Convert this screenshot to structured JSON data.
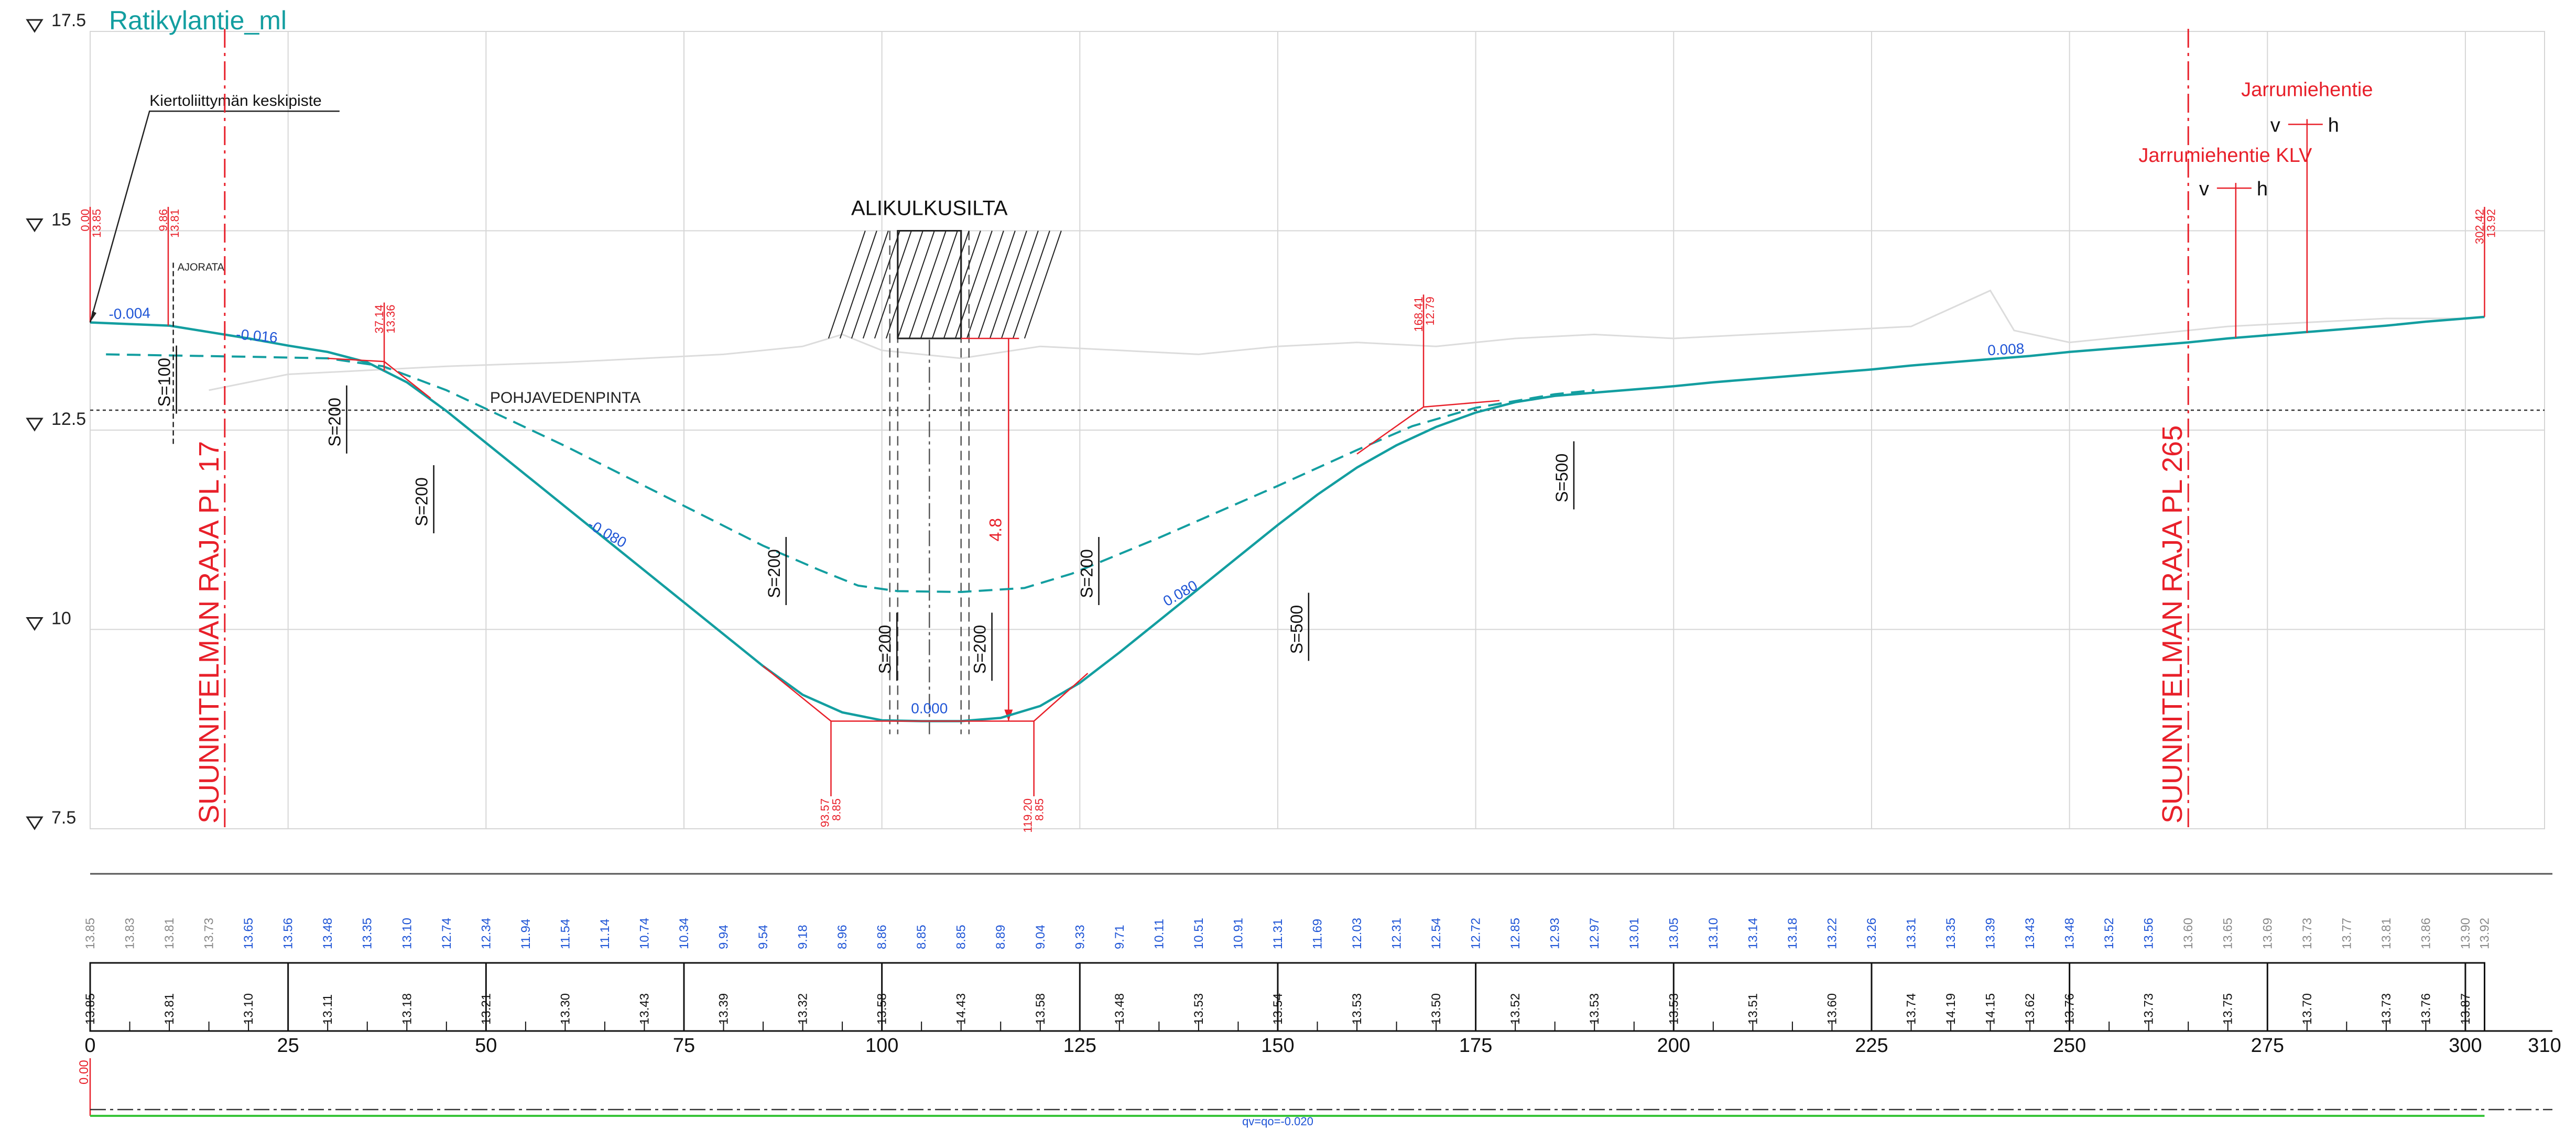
{
  "title": "Ratikylantie_ml",
  "colors": {
    "grade": "#139ea0",
    "red": "#e8202a",
    "blue": "#1f55d6",
    "grid": "#d6d6d6",
    "ground": "#dcdcdc",
    "gray": "#8a8a8a",
    "green": "#39c43a"
  },
  "y_levels": [
    {
      "value": 17.5,
      "label": "17.5"
    },
    {
      "value": 15,
      "label": "15"
    },
    {
      "value": 12.5,
      "label": "12.5"
    },
    {
      "value": 10,
      "label": "10"
    },
    {
      "value": 7.5,
      "label": "7.5"
    }
  ],
  "x_range": [
    0,
    310
  ],
  "y_range": [
    7.5,
    17.5
  ],
  "chainage_ticks": [
    {
      "value": 0,
      "label": "0"
    },
    {
      "value": 25,
      "label": "25"
    },
    {
      "value": 50,
      "label": "50"
    },
    {
      "value": 75,
      "label": "75"
    },
    {
      "value": 100,
      "label": "100"
    },
    {
      "value": 125,
      "label": "125"
    },
    {
      "value": 150,
      "label": "150"
    },
    {
      "value": 175,
      "label": "175"
    },
    {
      "value": 200,
      "label": "200"
    },
    {
      "value": 225,
      "label": "225"
    },
    {
      "value": 250,
      "label": "250"
    },
    {
      "value": 275,
      "label": "275"
    },
    {
      "value": 300,
      "label": "300"
    },
    {
      "value": 310,
      "label": "310"
    }
  ],
  "design_line": [
    [
      0,
      13.85
    ],
    [
      5,
      13.83
    ],
    [
      10,
      13.81
    ],
    [
      15,
      13.73
    ],
    [
      20,
      13.65
    ],
    [
      25,
      13.56
    ],
    [
      30,
      13.48
    ],
    [
      35,
      13.35
    ],
    [
      40,
      13.1
    ],
    [
      45,
      12.74
    ],
    [
      50,
      12.34
    ],
    [
      55,
      11.94
    ],
    [
      60,
      11.54
    ],
    [
      65,
      11.14
    ],
    [
      70,
      10.74
    ],
    [
      75,
      10.34
    ],
    [
      80,
      9.94
    ],
    [
      85,
      9.54
    ],
    [
      90,
      9.18
    ],
    [
      95,
      8.96
    ],
    [
      100,
      8.86
    ],
    [
      105,
      8.85
    ],
    [
      110,
      8.85
    ],
    [
      115,
      8.89
    ],
    [
      120,
      9.04
    ],
    [
      125,
      9.33
    ],
    [
      130,
      9.71
    ],
    [
      135,
      10.11
    ],
    [
      140,
      10.51
    ],
    [
      145,
      10.91
    ],
    [
      150,
      11.31
    ],
    [
      155,
      11.69
    ],
    [
      160,
      12.03
    ],
    [
      165,
      12.31
    ],
    [
      170,
      12.54
    ],
    [
      175,
      12.72
    ],
    [
      180,
      12.85
    ],
    [
      185,
      12.93
    ],
    [
      190,
      12.97
    ],
    [
      195,
      13.01
    ],
    [
      200,
      13.05
    ],
    [
      205,
      13.1
    ],
    [
      210,
      13.14
    ],
    [
      215,
      13.18
    ],
    [
      220,
      13.22
    ],
    [
      225,
      13.26
    ],
    [
      230,
      13.31
    ],
    [
      235,
      13.35
    ],
    [
      240,
      13.39
    ],
    [
      245,
      13.43
    ],
    [
      250,
      13.48
    ],
    [
      255,
      13.52
    ],
    [
      260,
      13.56
    ],
    [
      265,
      13.6
    ],
    [
      270,
      13.65
    ],
    [
      275,
      13.69
    ],
    [
      280,
      13.73
    ],
    [
      285,
      13.77
    ],
    [
      290,
      13.81
    ],
    [
      295,
      13.86
    ],
    [
      300,
      13.9
    ],
    [
      302.42,
      13.92
    ]
  ],
  "dashed_line": [
    [
      2,
      13.45
    ],
    [
      20,
      13.42
    ],
    [
      30,
      13.4
    ],
    [
      37,
      13.3
    ],
    [
      45,
      13.0
    ],
    [
      60,
      12.3
    ],
    [
      75,
      11.55
    ],
    [
      85,
      11.05
    ],
    [
      92,
      10.75
    ],
    [
      97,
      10.55
    ],
    [
      102,
      10.48
    ],
    [
      110,
      10.47
    ],
    [
      118,
      10.52
    ],
    [
      124,
      10.7
    ],
    [
      135,
      11.15
    ],
    [
      150,
      11.8
    ],
    [
      160,
      12.25
    ],
    [
      167,
      12.55
    ],
    [
      175,
      12.78
    ],
    [
      185,
      12.95
    ],
    [
      190,
      13.0
    ]
  ],
  "ground_line": [
    [
      15,
      13.0
    ],
    [
      25,
      13.2
    ],
    [
      35,
      13.25
    ],
    [
      45,
      13.3
    ],
    [
      60,
      13.35
    ],
    [
      70,
      13.4
    ],
    [
      80,
      13.45
    ],
    [
      90,
      13.55
    ],
    [
      95,
      13.7
    ],
    [
      100,
      13.5
    ],
    [
      110,
      13.4
    ],
    [
      120,
      13.55
    ],
    [
      130,
      13.5
    ],
    [
      140,
      13.45
    ],
    [
      150,
      13.55
    ],
    [
      160,
      13.6
    ],
    [
      170,
      13.55
    ],
    [
      180,
      13.65
    ],
    [
      190,
      13.7
    ],
    [
      200,
      13.65
    ],
    [
      210,
      13.7
    ],
    [
      220,
      13.75
    ],
    [
      230,
      13.8
    ],
    [
      240,
      14.25
    ],
    [
      243,
      13.75
    ],
    [
      250,
      13.6
    ],
    [
      260,
      13.7
    ],
    [
      270,
      13.8
    ],
    [
      280,
      13.85
    ],
    [
      290,
      13.9
    ],
    [
      300,
      13.9
    ]
  ],
  "groundwater": {
    "value": 12.75,
    "label": "POHJAVEDENPINTA"
  },
  "grade_labels": [
    {
      "x": 5,
      "y": 13.9,
      "text": "-0.004",
      "angle": -2
    },
    {
      "x": 21,
      "y": 13.62,
      "text": "-0.016",
      "angle": 5
    },
    {
      "x": 65,
      "y": 11.15,
      "text": "-0.080",
      "angle": 30
    },
    {
      "x": 106,
      "y": 8.95,
      "text": "0.000",
      "angle": 0
    },
    {
      "x": 138,
      "y": 10.4,
      "text": "0.080",
      "angle": -30
    },
    {
      "x": 242,
      "y": 13.45,
      "text": "0.008",
      "angle": -3
    }
  ],
  "curve_labels": [
    {
      "x": 10.5,
      "y": 13.1,
      "text": "S=100"
    },
    {
      "x": 32,
      "y": 12.6,
      "text": "S=200"
    },
    {
      "x": 43,
      "y": 11.6,
      "text": "S=200"
    },
    {
      "x": 87.5,
      "y": 10.7,
      "text": "S=200"
    },
    {
      "x": 101.5,
      "y": 9.75,
      "text": "S=200"
    },
    {
      "x": 113.5,
      "y": 9.75,
      "text": "S=200"
    },
    {
      "x": 127,
      "y": 10.7,
      "text": "S=200"
    },
    {
      "x": 153.5,
      "y": 10.0,
      "text": "S=500"
    },
    {
      "x": 187,
      "y": 11.9,
      "text": "S=500"
    }
  ],
  "stations": [
    {
      "x": 0,
      "top": "0.00",
      "bottom": "13.85"
    },
    {
      "x": 9.86,
      "top": "9.86",
      "bottom": "13.81"
    },
    {
      "x": 37.14,
      "top": "37.14",
      "bottom": "13.36"
    },
    {
      "x": 168.41,
      "top": "168.41",
      "bottom": "12.79"
    },
    {
      "x": 302.42,
      "top": "302.42",
      "bottom": "13.92"
    }
  ],
  "low_points": [
    {
      "x": 93.57,
      "top": "93.57",
      "bottom": "8.85"
    },
    {
      "x": 119.2,
      "top": "119.20",
      "bottom": "8.85"
    }
  ],
  "bridge": {
    "label": "ALIKULKUSILTA",
    "x1": 102,
    "x2": 110,
    "top": 15.0,
    "bottom": 13.65,
    "clearance": "4.8"
  },
  "ajorata_label": "AJORATA",
  "leader_note": "Kiertoliittymän keskipiste",
  "boundaries": [
    {
      "x": 17,
      "text": "SUUNNITELMAN RAJA PL 17"
    },
    {
      "x": 265,
      "text": "SUUNNITELMAN RAJA PL 265"
    }
  ],
  "crossings": [
    {
      "name": "Jarrumiehentie",
      "x": 280,
      "v": "v",
      "h": "h"
    },
    {
      "name": "Jarrumiehentie KLV",
      "x": 271,
      "v": "v",
      "h": "h"
    }
  ],
  "band_top_values": [
    "13.85",
    "13.83",
    "13.81",
    "13.73",
    "13.65",
    "13.56",
    "13.48",
    "13.35",
    "13.10",
    "12.74",
    "12.34",
    "11.94",
    "11.54",
    "11.14",
    "10.74",
    "10.34",
    "9.94",
    "9.54",
    "9.18",
    "8.96",
    "8.86",
    "8.85",
    "8.85",
    "8.89",
    "9.04",
    "9.33",
    "9.71",
    "10.11",
    "10.51",
    "10.91",
    "11.31",
    "11.69",
    "12.03",
    "12.31",
    "12.54",
    "12.72",
    "12.85",
    "12.93",
    "12.97",
    "13.01",
    "13.05",
    "13.10",
    "13.14",
    "13.18",
    "13.22",
    "13.26",
    "13.31",
    "13.35",
    "13.39",
    "13.43",
    "13.48",
    "13.52",
    "13.56",
    "13.60",
    "13.65",
    "13.69",
    "13.73",
    "13.77",
    "13.81",
    "13.86",
    "13.90",
    "13.92"
  ],
  "band_ground_values": [
    {
      "x": 0,
      "label": "13.85"
    },
    {
      "x": 10,
      "label": "13.81"
    },
    {
      "x": 20,
      "label": "13.10"
    },
    {
      "x": 30,
      "label": "13.11"
    },
    {
      "x": 40,
      "label": "13.18"
    },
    {
      "x": 50,
      "label": "13.21"
    },
    {
      "x": 60,
      "label": "13.30"
    },
    {
      "x": 70,
      "label": "13.43"
    },
    {
      "x": 80,
      "label": "13.39"
    },
    {
      "x": 90,
      "label": "13.32"
    },
    {
      "x": 100,
      "label": "13.58"
    },
    {
      "x": 110,
      "label": "14.43"
    },
    {
      "x": 120,
      "label": "13.58"
    },
    {
      "x": 130,
      "label": "13.48"
    },
    {
      "x": 140,
      "label": "13.53"
    },
    {
      "x": 150,
      "label": "13.54"
    },
    {
      "x": 160,
      "label": "13.53"
    },
    {
      "x": 170,
      "label": "13.50"
    },
    {
      "x": 180,
      "label": "13.52"
    },
    {
      "x": 190,
      "label": "13.53"
    },
    {
      "x": 200,
      "label": "13.53"
    },
    {
      "x": 210,
      "label": "13.51"
    },
    {
      "x": 220,
      "label": "13.60"
    },
    {
      "x": 230,
      "label": "13.74"
    },
    {
      "x": 235,
      "label": "14.19"
    },
    {
      "x": 240,
      "label": "14.15"
    },
    {
      "x": 245,
      "label": "13.62"
    },
    {
      "x": 250,
      "label": "13.76"
    },
    {
      "x": 260,
      "label": "13.73"
    },
    {
      "x": 270,
      "label": "13.75"
    },
    {
      "x": 280,
      "label": "13.70"
    },
    {
      "x": 290,
      "label": "13.73"
    },
    {
      "x": 295,
      "label": "13.76"
    },
    {
      "x": 300,
      "label": "13.87"
    }
  ],
  "crossfall_start": "0.00",
  "crossfall_label": "qv=qo=-0.020"
}
